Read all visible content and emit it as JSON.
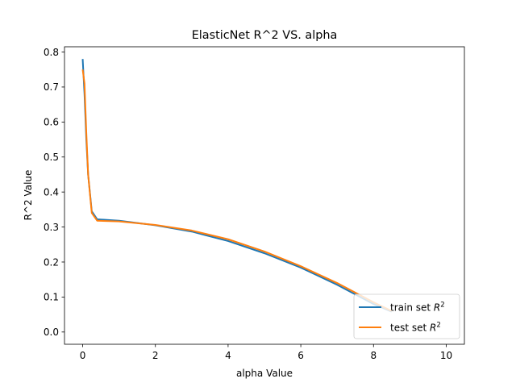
{
  "chart_data": {
    "type": "line",
    "title": "ElasticNet R^2 VS. alpha",
    "xlabel": "alpha Value",
    "ylabel": "R^2 Value",
    "xlim": [
      -0.5,
      10.5
    ],
    "ylim": [
      -0.035,
      0.815
    ],
    "xticks": [
      0,
      2,
      4,
      6,
      8,
      10
    ],
    "yticks": [
      0.0,
      0.1,
      0.2,
      0.3,
      0.4,
      0.5,
      0.6,
      0.7,
      0.8
    ],
    "grid": false,
    "legend_position": "lower-right",
    "series": [
      {
        "name": "train set R^2",
        "color": "#1f77b4",
        "x": [
          0.0,
          0.05,
          0.1,
          0.15,
          0.25,
          0.4,
          1.0,
          2.0,
          3.0,
          4.0,
          5.0,
          6.0,
          7.0,
          8.0,
          8.5
        ],
        "y": [
          0.78,
          0.68,
          0.55,
          0.45,
          0.345,
          0.322,
          0.318,
          0.305,
          0.287,
          0.26,
          0.225,
          0.184,
          0.135,
          0.08,
          0.058
        ]
      },
      {
        "name": "test set R^2",
        "color": "#ff7f0e",
        "x": [
          0.0,
          0.05,
          0.1,
          0.15,
          0.25,
          0.4,
          1.0,
          2.0,
          3.0,
          4.0,
          5.0,
          6.0,
          7.0,
          8.0,
          8.5
        ],
        "y": [
          0.75,
          0.71,
          0.57,
          0.45,
          0.34,
          0.318,
          0.316,
          0.306,
          0.29,
          0.265,
          0.23,
          0.188,
          0.14,
          0.085,
          0.06
        ]
      }
    ]
  }
}
